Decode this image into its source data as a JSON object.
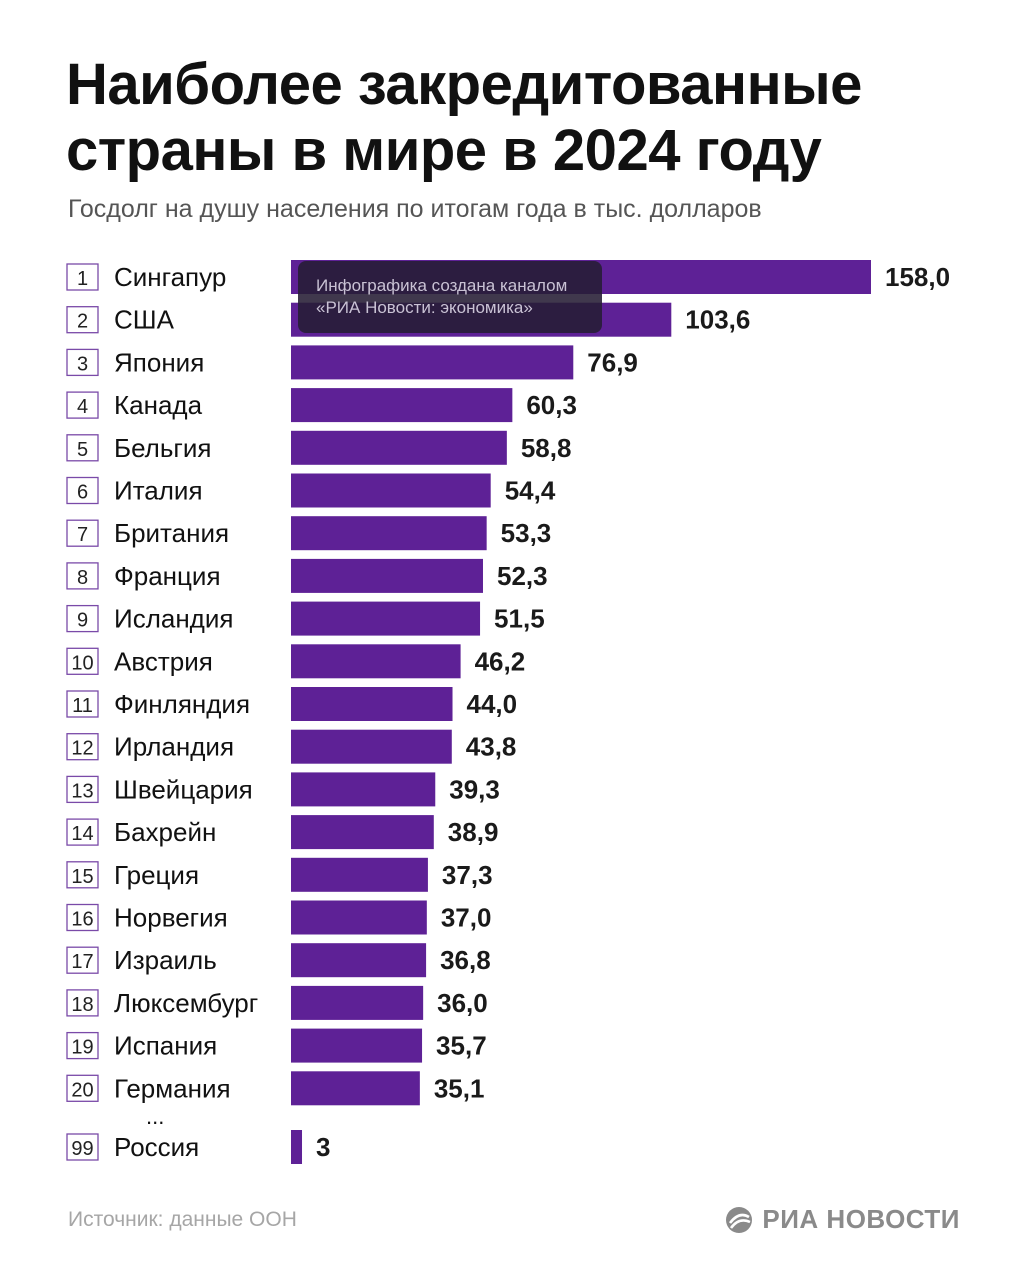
{
  "header": {
    "title_line1": "Наиболее закредитованные",
    "title_line2": "страны в мире в 2024 году",
    "subtitle": "Госдолг на душу населения по итогам года в тыс. долларов"
  },
  "overlay": {
    "line1": "Инфографика создана каналом",
    "line2": "«РИА Новости: экономика»"
  },
  "ellipsis": "...",
  "footer": {
    "source": "Источник: данные ООН",
    "brand": "РИА НОВОСТИ",
    "brand_icon": "ria-novosti-logo-icon"
  },
  "colors": {
    "bar": "#5e2196",
    "badge_border": "#7a4aa8",
    "value_text": "#1a1a1a"
  },
  "chart_data": {
    "type": "bar",
    "orientation": "horizontal",
    "ranks": [
      "1",
      "2",
      "3",
      "4",
      "5",
      "6",
      "7",
      "8",
      "9",
      "10",
      "11",
      "12",
      "13",
      "14",
      "15",
      "16",
      "17",
      "18",
      "19",
      "20",
      "99"
    ],
    "categories": [
      "Сингапур",
      "США",
      "Япония",
      "Канада",
      "Бельгия",
      "Италия",
      "Британия",
      "Франция",
      "Исландия",
      "Австрия",
      "Финляндия",
      "Ирландия",
      "Швейцария",
      "Бахрейн",
      "Греция",
      "Норвегия",
      "Израиль",
      "Люксембург",
      "Испания",
      "Германия",
      "Россия"
    ],
    "values": [
      158.0,
      103.6,
      76.9,
      60.3,
      58.8,
      54.4,
      53.3,
      52.3,
      51.5,
      46.2,
      44.0,
      43.8,
      39.3,
      38.9,
      37.3,
      37.0,
      36.8,
      36.0,
      35.7,
      35.1,
      3
    ],
    "value_labels": [
      "158,0",
      "103,6",
      "76,9",
      "60,3",
      "58,8",
      "54,4",
      "53,3",
      "52,3",
      "51,5",
      "46,2",
      "44,0",
      "43,8",
      "39,3",
      "38,9",
      "37,3",
      "37,0",
      "36,8",
      "36,0",
      "35,7",
      "35,1",
      "3"
    ],
    "xlim": [
      0,
      158.0
    ],
    "grid": false,
    "legend": "none"
  }
}
